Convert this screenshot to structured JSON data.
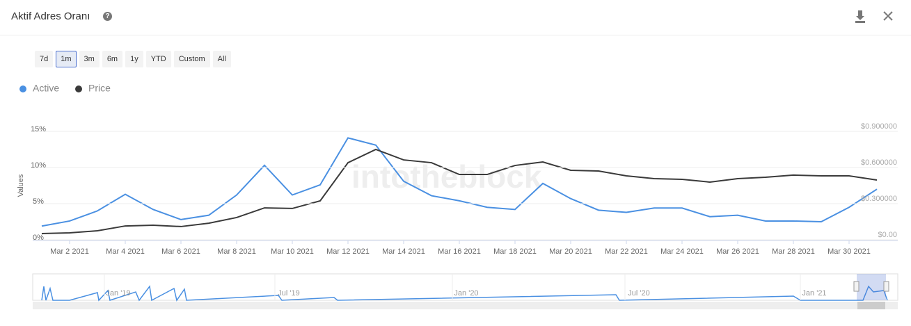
{
  "header": {
    "title": "Aktif Adres Oranı"
  },
  "range_buttons": [
    "7d",
    "1m",
    "3m",
    "6m",
    "1y",
    "YTD",
    "Custom",
    "All"
  ],
  "selected_range": "1m",
  "watermark": "intotheblock",
  "navigator": {
    "labels": [
      "Jan '19",
      "Jul '19",
      "Jan '20",
      "Jul '20",
      "Jan '21"
    ]
  },
  "chart_data": {
    "type": "line",
    "y_label": "Values",
    "categories": [
      null,
      "Mar 2 2021",
      null,
      "Mar 4 2021",
      null,
      "Mar 6 2021",
      null,
      "Mar 8 2021",
      null,
      "Mar 10 2021",
      null,
      "Mar 12 2021",
      null,
      "Mar 14 2021",
      null,
      "Mar 16 2021",
      null,
      "Mar 18 2021",
      null,
      "Mar 20 2021",
      null,
      "Mar 22 2021",
      null,
      "Mar 24 2021",
      null,
      "Mar 26 2021",
      null,
      "Mar 28 2021",
      null,
      "Mar 30 2021",
      null
    ],
    "series": [
      {
        "name": "Active",
        "color": "#4a90e2",
        "values": [
          1.9,
          2.6,
          4.0,
          6.3,
          4.2,
          2.8,
          3.4,
          6.2,
          10.3,
          6.2,
          7.6,
          14.1,
          13.1,
          8.1,
          6.1,
          5.4,
          4.5,
          4.2,
          7.8,
          5.7,
          4.1,
          3.8,
          4.4,
          4.4,
          3.2,
          3.4,
          2.6,
          2.6,
          2.5,
          4.5,
          7.0
        ]
      },
      {
        "name": "Price",
        "color": "#3a3a3a",
        "axis": "y2",
        "values": [
          0.052,
          0.058,
          0.075,
          0.115,
          0.121,
          0.11,
          0.138,
          0.185,
          0.265,
          0.26,
          0.323,
          0.64,
          0.75,
          0.663,
          0.64,
          0.542,
          0.542,
          0.617,
          0.646,
          0.577,
          0.571,
          0.531,
          0.508,
          0.502,
          0.479,
          0.508,
          0.519,
          0.537,
          0.531,
          0.531,
          0.496
        ]
      }
    ],
    "ylim": [
      0,
      15
    ],
    "yticks": [
      {
        "value": 0,
        "label": "0%"
      },
      {
        "value": 5,
        "label": "5%"
      },
      {
        "value": 10,
        "label": "10%"
      },
      {
        "value": 15,
        "label": "15%"
      }
    ],
    "y2lim": [
      0,
      0.9
    ],
    "y2ticks": [
      {
        "value": 0,
        "label": "$0.00"
      },
      {
        "value": 0.3,
        "label": "$0.300000"
      },
      {
        "value": 0.6,
        "label": "$0.600000"
      },
      {
        "value": 0.9,
        "label": "$0.900000"
      }
    ],
    "grid": true
  }
}
